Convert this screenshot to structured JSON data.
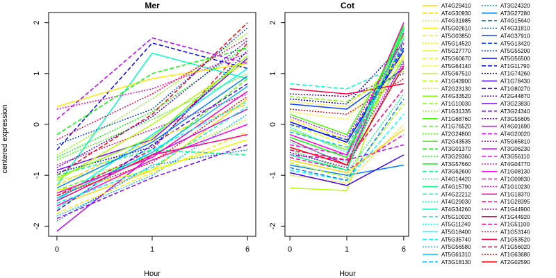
{
  "chart_data": {
    "type": "line",
    "ylabel": "centered expression",
    "ylim": [
      -2.2,
      2.2
    ],
    "y_ticks": [
      -2,
      -1,
      0,
      1,
      2
    ],
    "palette": [
      "#ffd700",
      "#ffea00",
      "#e6ff00",
      "#b4ff00",
      "#80ff00",
      "#40ff00",
      "#00ff00",
      "#00ff80",
      "#00ffc0",
      "#00ffff",
      "#00c0ff",
      "#0080ff",
      "#0040ff",
      "#0000ff",
      "#4000ff",
      "#8000ff",
      "#c000ff",
      "#ff00ff",
      "#ff00c0",
      "#ff0080",
      "#ff0040",
      "#ff0000"
    ],
    "panels": [
      {
        "title": "Mer",
        "xlabel": "Hour",
        "x_tick_labels": [
          "0",
          "1",
          "6"
        ],
        "series": [
          {
            "values": [
              -1.6,
              -0.9,
              0.5
            ]
          },
          {
            "values": [
              -1.3,
              -0.6,
              0.9
            ]
          },
          {
            "values": [
              -1.8,
              -1.0,
              0.2
            ]
          },
          {
            "values": [
              -0.9,
              -0.3,
              1.3
            ]
          },
          {
            "values": [
              -1.4,
              -0.5,
              1.6
            ]
          },
          {
            "values": [
              -1.1,
              -0.7,
              0.1
            ]
          },
          {
            "values": [
              -1.2,
              1.4,
              0.9
            ]
          },
          {
            "values": [
              -0.5,
              1.6,
              1.1
            ]
          },
          {
            "values": [
              0.3,
              0.7,
              1.4
            ]
          },
          {
            "values": [
              0.35,
              0.9,
              1.2
            ]
          },
          {
            "values": [
              -0.2,
              1.0,
              1.5
            ]
          },
          {
            "values": [
              -1.9,
              -0.8,
              -0.5
            ]
          },
          {
            "values": [
              -2.1,
              -0.6,
              0.3
            ]
          },
          {
            "values": [
              -1.0,
              0.2,
              2.0
            ]
          },
          {
            "values": [
              -0.6,
              0.5,
              1.8
            ]
          },
          {
            "values": [
              -1.5,
              -0.2,
              1.1
            ]
          },
          {
            "values": [
              -1.7,
              -0.4,
              0.8
            ]
          },
          {
            "values": [
              -0.8,
              -0.1,
              0.6
            ]
          },
          {
            "values": [
              -1.3,
              -0.9,
              -0.3
            ]
          },
          {
            "values": [
              -1.0,
              -0.5,
              -0.6
            ]
          },
          {
            "values": [
              -0.4,
              0.3,
              1.9
            ]
          },
          {
            "values": [
              -1.6,
              -0.7,
              0.0
            ]
          },
          {
            "values": [
              -1.2,
              -0.3,
              0.4
            ]
          },
          {
            "values": [
              -0.7,
              0.1,
              1.0
            ]
          },
          {
            "values": [
              -1.45,
              -0.55,
              0.75
            ]
          },
          {
            "values": [
              -1.85,
              -1.05,
              -0.4
            ]
          },
          {
            "values": [
              -0.3,
              0.6,
              1.7
            ]
          },
          {
            "values": [
              -1.1,
              0.0,
              1.25
            ]
          },
          {
            "values": [
              -1.55,
              -0.85,
              0.35
            ]
          },
          {
            "values": [
              -0.95,
              -0.45,
              1.45
            ]
          },
          {
            "values": [
              -1.35,
              -0.65,
              0.65
            ]
          },
          {
            "values": [
              -1.75,
              -0.95,
              -0.15
            ]
          },
          {
            "values": [
              -0.65,
              0.25,
              1.55
            ]
          },
          {
            "values": [
              -1.25,
              -0.35,
              0.95
            ]
          },
          {
            "values": [
              0.1,
              1.7,
              1.2
            ]
          },
          {
            "values": [
              -1.4,
              -0.75,
              0.55
            ]
          },
          {
            "values": [
              -1.05,
              -0.25,
              1.35
            ]
          },
          {
            "values": [
              -1.65,
              -0.5,
              0.45
            ]
          },
          {
            "values": [
              -0.85,
              0.15,
              1.65
            ]
          },
          {
            "values": [
              -1.5,
              -0.6,
              -0.2
            ]
          }
        ]
      },
      {
        "title": "Cot",
        "xlabel": "Hour",
        "x_tick_labels": [
          "0",
          "1",
          "6"
        ],
        "series": [
          {
            "values": [
              -1.25,
              -1.3,
              1.9
            ]
          },
          {
            "values": [
              0.8,
              0.7,
              1.2
            ]
          },
          {
            "values": [
              0.5,
              0.4,
              1.6
            ]
          },
          {
            "values": [
              -0.2,
              -0.6,
              2.0
            ]
          },
          {
            "values": [
              0.1,
              -0.3,
              1.5
            ]
          },
          {
            "values": [
              -0.5,
              -0.9,
              1.7
            ]
          },
          {
            "values": [
              -0.8,
              -1.0,
              -0.8
            ]
          },
          {
            "values": [
              -0.6,
              -0.7,
              -0.4
            ]
          },
          {
            "values": [
              0.3,
              0.2,
              0.9
            ]
          },
          {
            "values": [
              -0.1,
              -0.5,
              1.3
            ]
          },
          {
            "values": [
              -0.9,
              -1.1,
              0.2
            ]
          },
          {
            "values": [
              0.6,
              0.55,
              1.0
            ]
          },
          {
            "values": [
              -0.3,
              -0.8,
              1.8
            ]
          },
          {
            "values": [
              0.0,
              -0.4,
              1.4
            ]
          },
          {
            "values": [
              -0.7,
              -0.95,
              0.6
            ]
          },
          {
            "values": [
              0.4,
              0.3,
              1.1
            ]
          },
          {
            "values": [
              -0.4,
              -0.6,
              1.6
            ]
          },
          {
            "values": [
              -1.0,
              -1.15,
              0.0
            ]
          },
          {
            "values": [
              0.2,
              -0.2,
              1.75
            ]
          },
          {
            "values": [
              -0.15,
              -0.45,
              1.55
            ]
          },
          {
            "values": [
              -0.55,
              -0.85,
              1.25
            ]
          },
          {
            "values": [
              0.7,
              0.6,
              0.8
            ]
          },
          {
            "values": [
              -0.75,
              -1.05,
              0.4
            ]
          },
          {
            "values": [
              -0.35,
              -0.75,
              1.85
            ]
          },
          {
            "values": [
              0.05,
              -0.35,
              1.45
            ]
          },
          {
            "values": [
              -0.65,
              -0.9,
              -0.2
            ]
          },
          {
            "values": [
              0.45,
              0.35,
              1.3
            ]
          },
          {
            "values": [
              -0.25,
              -0.65,
              1.95
            ]
          },
          {
            "values": [
              -0.85,
              -1.1,
              0.5
            ]
          },
          {
            "values": [
              0.15,
              -0.25,
              1.65
            ]
          },
          {
            "values": [
              -0.45,
              -0.8,
              1.15
            ]
          },
          {
            "values": [
              0.55,
              0.45,
              1.05
            ]
          },
          {
            "values": [
              -0.05,
              -0.55,
              1.7
            ]
          },
          {
            "values": [
              -0.95,
              -1.2,
              -0.6
            ]
          },
          {
            "values": [
              -0.5,
              -0.7,
              0.7
            ]
          },
          {
            "values": [
              0.25,
              0.1,
              1.35
            ]
          },
          {
            "values": [
              -0.6,
              -0.9,
              1.9
            ]
          },
          {
            "values": [
              0.0,
              -0.3,
              1.5
            ]
          },
          {
            "values": [
              -0.2,
              -0.6,
              1.2
            ]
          },
          {
            "values": [
              -0.7,
              -0.95,
              -0.1
            ]
          }
        ]
      }
    ],
    "legend": {
      "placement": "right",
      "entries": [
        "AT4G29410",
        "AT4G30930",
        "AT4G31985",
        "AT5G02610",
        "AT5G03850",
        "AT5G14520",
        "AT5G27770",
        "AT5G60670",
        "AT5G64140",
        "AT5G67510",
        "AT1G43900",
        "AT2G23130",
        "AT4G33520",
        "AT1G10030",
        "AT1G31335",
        "AT1G68760",
        "AT1G76520",
        "AT2G24800",
        "AT2G43535",
        "AT3G01370",
        "AT3G29360",
        "AT3G57660",
        "AT3G62600",
        "AT4G14420",
        "AT4G15790",
        "AT4G22212",
        "AT4G29030",
        "AT4G34260",
        "AT5G10020",
        "AT5G11240",
        "AT5G18400",
        "AT5G35740",
        "AT5G56580",
        "AT5G61310",
        "AT3G18130",
        "AT3G24320",
        "AT3G27280",
        "AT4G15640",
        "AT4G31810",
        "AT4G37910",
        "AT5G13420",
        "AT5G55200",
        "AT5G56500",
        "AT1G11790",
        "AT1G74260",
        "AT1G78430",
        "AT1G80270",
        "AT2G44870",
        "AT3G23830",
        "AT3G24340",
        "AT3G55605",
        "AT4G01690",
        "AT4G20020",
        "AT5G65810",
        "AT3G06230",
        "AT3G56110",
        "AT4G04770",
        "AT1G08130",
        "AT1G09830",
        "AT1G10230",
        "AT1G18370",
        "AT1G28395",
        "AT1G44900",
        "AT1G44920",
        "AT1G51100",
        "AT1G53140",
        "AT1G53520",
        "AT1G56020",
        "AT1G63680",
        "AT2G02590"
      ]
    }
  }
}
